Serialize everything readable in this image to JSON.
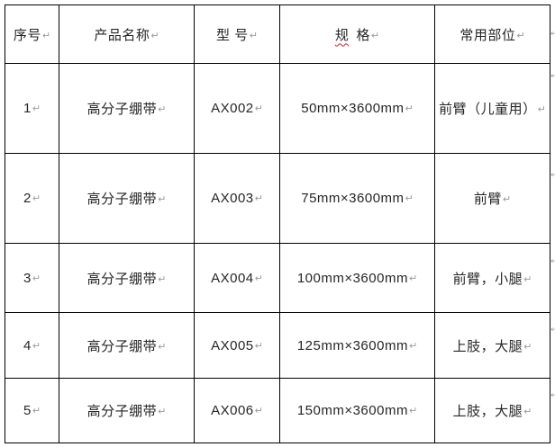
{
  "page": {
    "background_color": "#ffffff",
    "border_color": "#000000",
    "text_color": "#262626",
    "formatting_mark_color": "#9a9a9a",
    "spellcheck_underline_color": "#cc2222"
  },
  "table": {
    "headers": {
      "no": "序号",
      "name": "产品名称",
      "model": "型 号",
      "spec_char1": "规",
      "spec_char2": "格",
      "parts": "常用部位"
    },
    "rows": [
      {
        "no": "1",
        "name": "高分子绷带",
        "model": "AX002",
        "spec": "50mm×3600mm",
        "parts": "前臂（儿童用）"
      },
      {
        "no": "2",
        "name": "高分子绷带",
        "model": "AX003",
        "spec": "75mm×3600mm",
        "parts": "前臂"
      },
      {
        "no": "3",
        "name": "高分子绷带",
        "model": "AX004",
        "spec": "100mm×3600mm",
        "parts": "前臂，小腿"
      },
      {
        "no": "4",
        "name": "高分子绷带",
        "model": "AX005",
        "spec": "125mm×3600mm",
        "parts": "上肢，大腿"
      },
      {
        "no": "5",
        "name": "高分子绷带",
        "model": "AX006",
        "spec": "150mm×3600mm",
        "parts": "上肢，大腿"
      }
    ],
    "paragraph_mark": "↵",
    "row_end_mark": "↵"
  }
}
